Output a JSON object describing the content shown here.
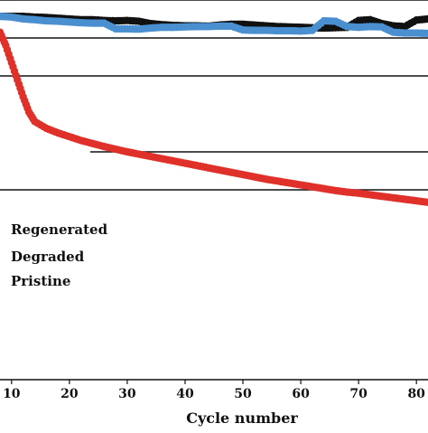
{
  "chart_data": {
    "type": "scatter",
    "title": "",
    "xlabel": "Cycle number",
    "ylabel": "",
    "xlim": [
      8,
      82
    ],
    "ylim": [
      0,
      1
    ],
    "x_ticks": [
      "10",
      "20",
      "30",
      "40",
      "50",
      "60",
      "70",
      "80"
    ],
    "grid": "horizontal",
    "legend_position": "center-left",
    "series": [
      {
        "name": "Regenerated",
        "color": "#111111",
        "x": [
          8,
          10,
          12,
          14,
          16,
          18,
          20,
          22,
          24,
          26,
          28,
          30,
          32,
          34,
          36,
          38,
          40,
          42,
          44,
          46,
          48,
          50,
          52,
          54,
          56,
          58,
          60,
          62,
          64,
          66,
          68,
          70,
          72,
          74,
          76,
          78,
          80,
          82
        ],
        "y": [
          0.957,
          0.957,
          0.957,
          0.955,
          0.954,
          0.952,
          0.95,
          0.948,
          0.948,
          0.946,
          0.945,
          0.946,
          0.944,
          0.938,
          0.935,
          0.933,
          0.932,
          0.932,
          0.931,
          0.934,
          0.936,
          0.936,
          0.934,
          0.932,
          0.93,
          0.929,
          0.928,
          0.927,
          0.926,
          0.927,
          0.928,
          0.946,
          0.948,
          0.938,
          0.932,
          0.93,
          0.947,
          0.95
        ]
      },
      {
        "name": "Degraded",
        "color": "#4a90d0",
        "x": [
          8,
          10,
          12,
          14,
          16,
          18,
          20,
          22,
          24,
          26,
          28,
          30,
          32,
          34,
          36,
          38,
          40,
          42,
          44,
          46,
          48,
          50,
          52,
          54,
          56,
          58,
          60,
          62,
          64,
          66,
          68,
          70,
          72,
          74,
          76,
          78,
          80,
          82
        ],
        "y": [
          0.957,
          0.955,
          0.95,
          0.948,
          0.945,
          0.944,
          0.942,
          0.94,
          0.939,
          0.939,
          0.924,
          0.924,
          0.923,
          0.926,
          0.928,
          0.928,
          0.929,
          0.93,
          0.93,
          0.931,
          0.931,
          0.921,
          0.92,
          0.92,
          0.919,
          0.919,
          0.918,
          0.92,
          0.945,
          0.944,
          0.93,
          0.928,
          0.93,
          0.929,
          0.915,
          0.913,
          0.913,
          0.912
        ]
      },
      {
        "name": "Pristine",
        "color": "#e0302a",
        "x": [
          8,
          9,
          10,
          11,
          12,
          13,
          14,
          16,
          18,
          20,
          22,
          24,
          26,
          28,
          30,
          32,
          34,
          36,
          38,
          40,
          42,
          44,
          46,
          48,
          50,
          52,
          54,
          56,
          58,
          60,
          62,
          64,
          66,
          68,
          70,
          72,
          74,
          76,
          78,
          80,
          82
        ],
        "y": [
          0.915,
          0.88,
          0.835,
          0.79,
          0.745,
          0.705,
          0.68,
          0.662,
          0.65,
          0.64,
          0.63,
          0.622,
          0.614,
          0.607,
          0.6,
          0.594,
          0.588,
          0.582,
          0.576,
          0.57,
          0.564,
          0.558,
          0.552,
          0.546,
          0.54,
          0.534,
          0.528,
          0.523,
          0.518,
          0.513,
          0.508,
          0.503,
          0.498,
          0.494,
          0.491,
          0.487,
          0.483,
          0.479,
          0.475,
          0.471,
          0.467
        ]
      }
    ],
    "gridlines_y": [
      1.0,
      0.9,
      0.8,
      0.6,
      0.5
    ]
  }
}
